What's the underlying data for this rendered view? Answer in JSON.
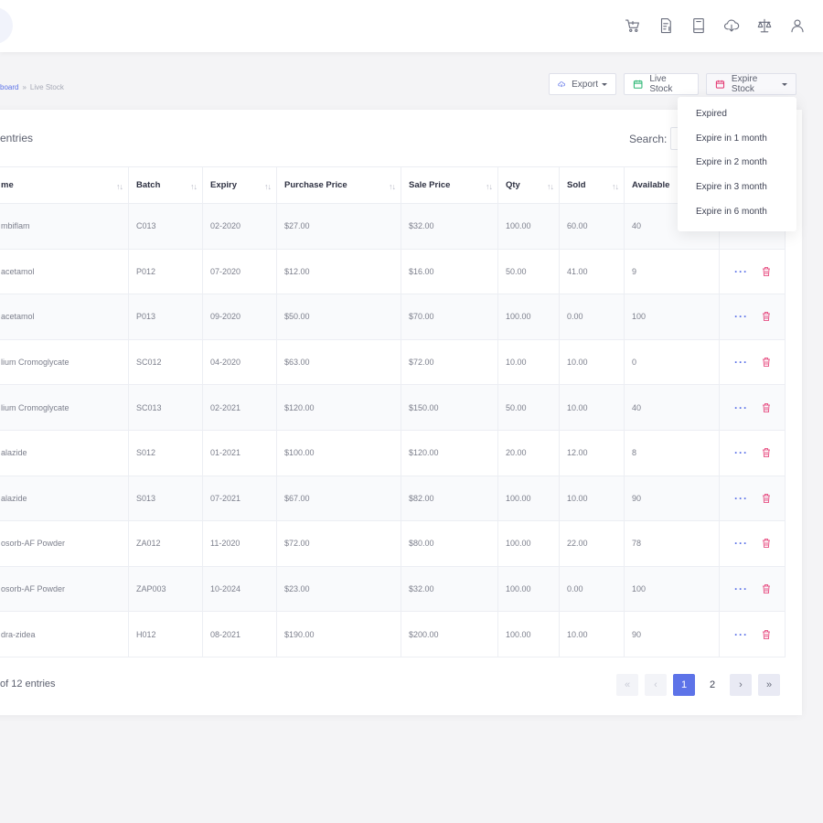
{
  "breadcrumb": {
    "link": "board",
    "separator": "»",
    "current": "Live Stock"
  },
  "header_icons": [
    "cart-icon",
    "invoice-icon",
    "book-icon",
    "cloud-download-icon",
    "scale-icon",
    "user-icon"
  ],
  "toolbar": {
    "export_label": "Export",
    "live_stock_label": "Live Stock",
    "expire_stock_label": "Expire Stock"
  },
  "expire_menu": [
    "Expired",
    "Expire in 1 month",
    "Expire in 2 month",
    "Expire in 3 month",
    "Expire in 6 month"
  ],
  "table": {
    "entries_label": "entries",
    "search_label": "Search:",
    "columns": [
      "me",
      "Batch",
      "Expiry",
      "Purchase Price",
      "Sale Price",
      "Qty",
      "Sold",
      "Available"
    ],
    "rows": [
      {
        "name": "mbiflam",
        "batch": "C013",
        "expiry": "02-2020",
        "purchase": "$27.00",
        "sale": "$32.00",
        "qty": "100.00",
        "sold": "60.00",
        "available": "40"
      },
      {
        "name": "acetamol",
        "batch": "P012",
        "expiry": "07-2020",
        "purchase": "$12.00",
        "sale": "$16.00",
        "qty": "50.00",
        "sold": "41.00",
        "available": "9"
      },
      {
        "name": "acetamol",
        "batch": "P013",
        "expiry": "09-2020",
        "purchase": "$50.00",
        "sale": "$70.00",
        "qty": "100.00",
        "sold": "0.00",
        "available": "100"
      },
      {
        "name": "lium Cromoglycate",
        "batch": "SC012",
        "expiry": "04-2020",
        "purchase": "$63.00",
        "sale": "$72.00",
        "qty": "10.00",
        "sold": "10.00",
        "available": "0"
      },
      {
        "name": "lium Cromoglycate",
        "batch": "SC013",
        "expiry": "02-2021",
        "purchase": "$120.00",
        "sale": "$150.00",
        "qty": "50.00",
        "sold": "10.00",
        "available": "40"
      },
      {
        "name": "alazide",
        "batch": "S012",
        "expiry": "01-2021",
        "purchase": "$100.00",
        "sale": "$120.00",
        "qty": "20.00",
        "sold": "12.00",
        "available": "8"
      },
      {
        "name": "alazide",
        "batch": "S013",
        "expiry": "07-2021",
        "purchase": "$67.00",
        "sale": "$82.00",
        "qty": "100.00",
        "sold": "10.00",
        "available": "90"
      },
      {
        "name": "osorb-AF Powder",
        "batch": "ZA012",
        "expiry": "11-2020",
        "purchase": "$72.00",
        "sale": "$80.00",
        "qty": "100.00",
        "sold": "22.00",
        "available": "78"
      },
      {
        "name": "osorb-AF Powder",
        "batch": "ZAP003",
        "expiry": "10-2024",
        "purchase": "$23.00",
        "sale": "$32.00",
        "qty": "100.00",
        "sold": "0.00",
        "available": "100"
      },
      {
        "name": "dra-zidea",
        "batch": "H012",
        "expiry": "08-2021",
        "purchase": "$190.00",
        "sale": "$200.00",
        "qty": "100.00",
        "sold": "10.00",
        "available": "90"
      }
    ],
    "row_actions": {
      "more": "···"
    }
  },
  "footer": {
    "entries_text": "of 12 entries",
    "pages": [
      "1",
      "2"
    ],
    "current_page": "1",
    "first_symbol": "«",
    "prev_symbol": "‹",
    "next_symbol": "›",
    "last_symbol": "»"
  },
  "colors": {
    "accent": "#5d73e8",
    "danger": "#e3326e",
    "live_stock_icon": "#2bb673",
    "expire_icon": "#e3326e"
  }
}
